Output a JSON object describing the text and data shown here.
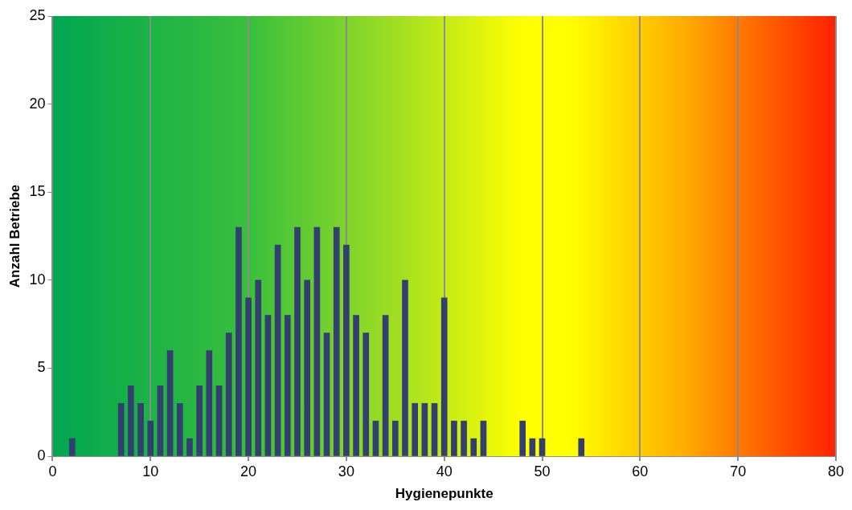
{
  "chart_data": {
    "type": "bar",
    "xlabel": "Hygienepunkte",
    "ylabel": "Anzahl Betriebe",
    "x": [
      2,
      7,
      8,
      9,
      10,
      11,
      12,
      13,
      14,
      15,
      16,
      17,
      18,
      19,
      20,
      21,
      22,
      23,
      24,
      25,
      26,
      27,
      28,
      29,
      30,
      31,
      32,
      33,
      34,
      35,
      36,
      37,
      38,
      39,
      40,
      41,
      42,
      43,
      44,
      48,
      49,
      50,
      54
    ],
    "values": [
      1,
      3,
      4,
      3,
      2,
      4,
      6,
      3,
      1,
      4,
      6,
      4,
      7,
      13,
      9,
      10,
      8,
      12,
      8,
      13,
      10,
      13,
      7,
      13,
      12,
      8,
      7,
      2,
      8,
      2,
      10,
      3,
      3,
      3,
      9,
      2,
      2,
      1,
      2,
      2,
      1,
      1,
      1
    ],
    "color": "#333f6e",
    "xlim": [
      0,
      80
    ],
    "xticks": [
      0,
      10,
      20,
      30,
      40,
      50,
      60,
      70,
      80
    ],
    "ylim": [
      0,
      25
    ],
    "yticks": [
      0,
      5,
      10,
      15,
      20,
      25
    ],
    "grid": "x"
  }
}
